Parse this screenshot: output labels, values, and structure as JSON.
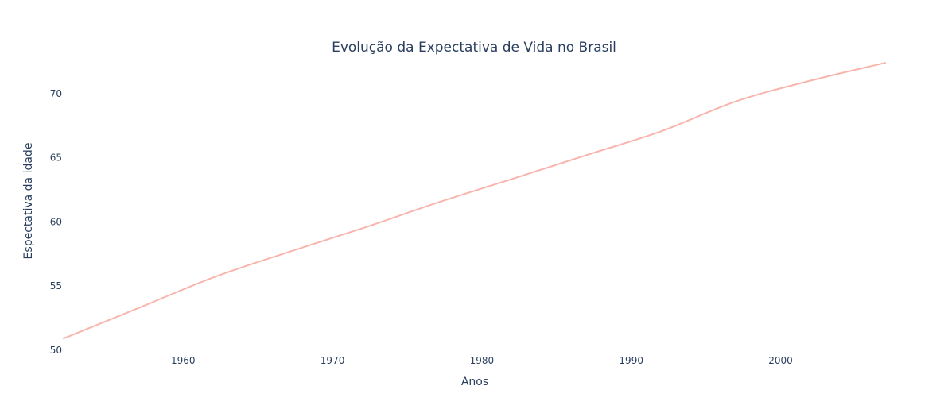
{
  "chart_data": {
    "type": "line",
    "title": "Evolução da Expectativa de Vida no Brasil",
    "xlabel": "Anos",
    "ylabel": "Espectativa da idade",
    "xlim": [
      1952,
      2007
    ],
    "ylim": [
      50,
      72.4
    ],
    "xticks": [
      1960,
      1970,
      1980,
      1990,
      2000
    ],
    "yticks": [
      50,
      55,
      60,
      65,
      70
    ],
    "grid": false,
    "legend": "none",
    "line_color": "#f7b5ad",
    "series": [
      {
        "x": [
          1952,
          1957,
          1962,
          1967,
          1972,
          1977,
          1982,
          1987,
          1992,
          1997,
          2002,
          2007
        ],
        "values": [
          50.917,
          53.285,
          55.665,
          57.632,
          59.504,
          61.489,
          63.336,
          65.205,
          67.057,
          69.388,
          71.006,
          72.39
        ]
      }
    ]
  }
}
